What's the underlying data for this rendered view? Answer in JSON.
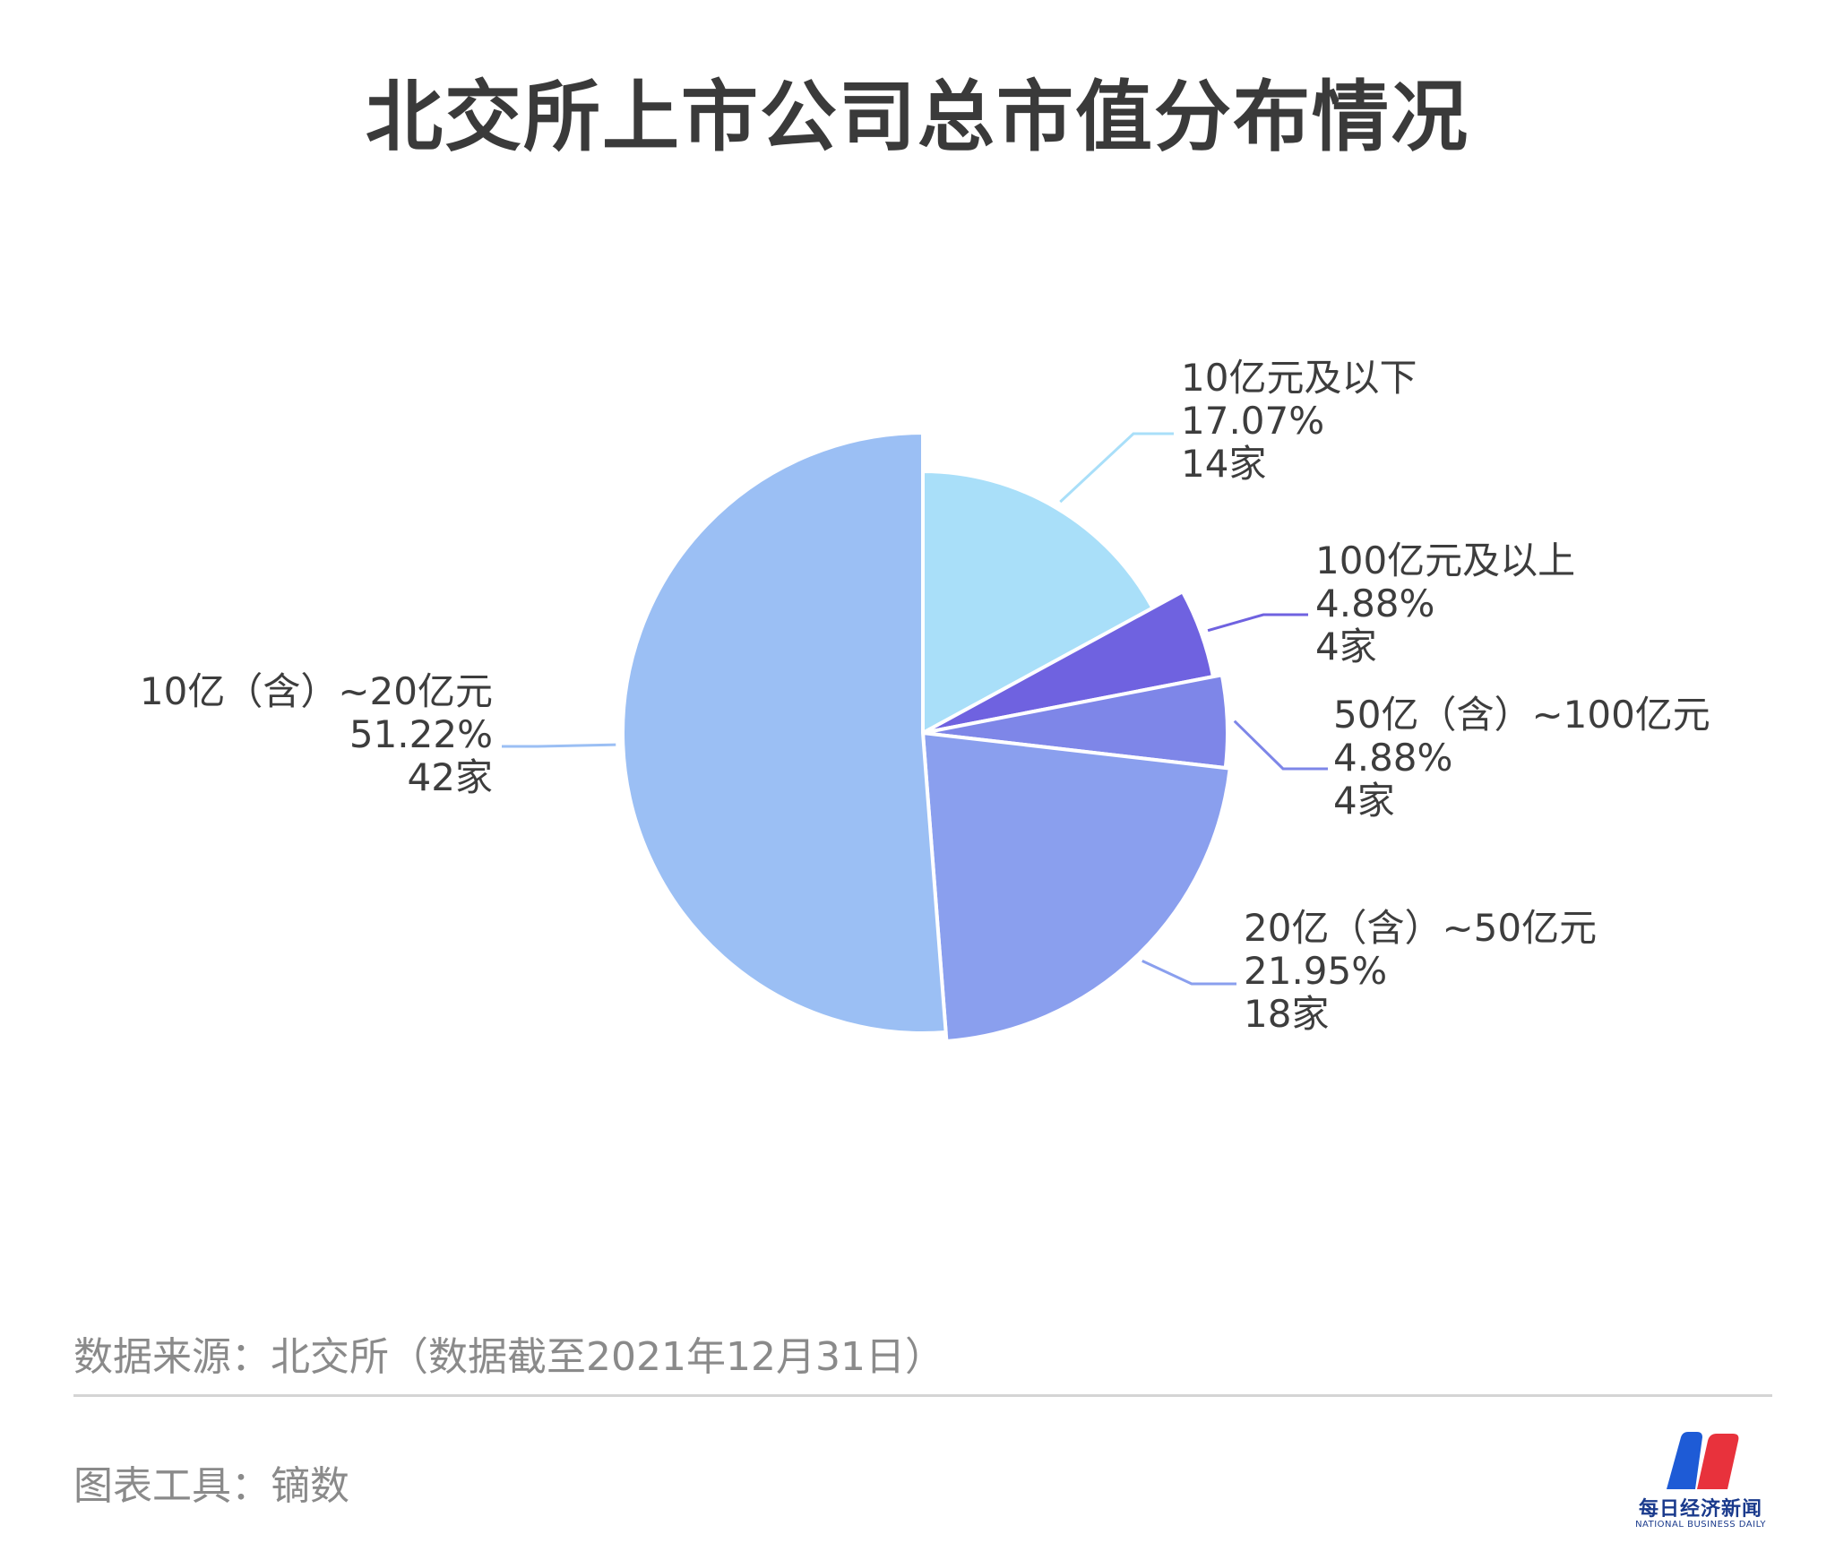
{
  "chart_data": {
    "type": "pie",
    "title": "北交所上市公司总市值分布情况",
    "slices": [
      {
        "category": "10亿元及以下",
        "percent_label": "17.07%",
        "count_label": "14家",
        "percent": 17.07,
        "count": 14,
        "color": "#a9dff9"
      },
      {
        "category": "100亿元及以上",
        "percent_label": "4.88%",
        "count_label": "4家",
        "percent": 4.88,
        "count": 4,
        "color": "#6f62e0"
      },
      {
        "category": "50亿（含）~100亿元",
        "percent_label": "4.88%",
        "count_label": "4家",
        "percent": 4.88,
        "count": 4,
        "color": "#7e86e8"
      },
      {
        "category": "20亿（含）~50亿元",
        "percent_label": "21.95%",
        "count_label": "18家",
        "percent": 21.95,
        "count": 18,
        "color": "#8a9fee"
      },
      {
        "category": "10亿（含）~20亿元",
        "percent_label": "51.22%",
        "count_label": "42家",
        "percent": 51.22,
        "count": 42,
        "color": "#9bbff4"
      }
    ]
  },
  "footer": {
    "source": "数据来源：北交所（数据截至2021年12月31日）",
    "tool": "图表工具：镝数"
  },
  "logo": {
    "name_cn": "每日经济新闻",
    "name_en": "NATIONAL BUSINESS DAILY",
    "colors": {
      "blue": "#1e5bd6",
      "red": "#e8323c"
    }
  }
}
